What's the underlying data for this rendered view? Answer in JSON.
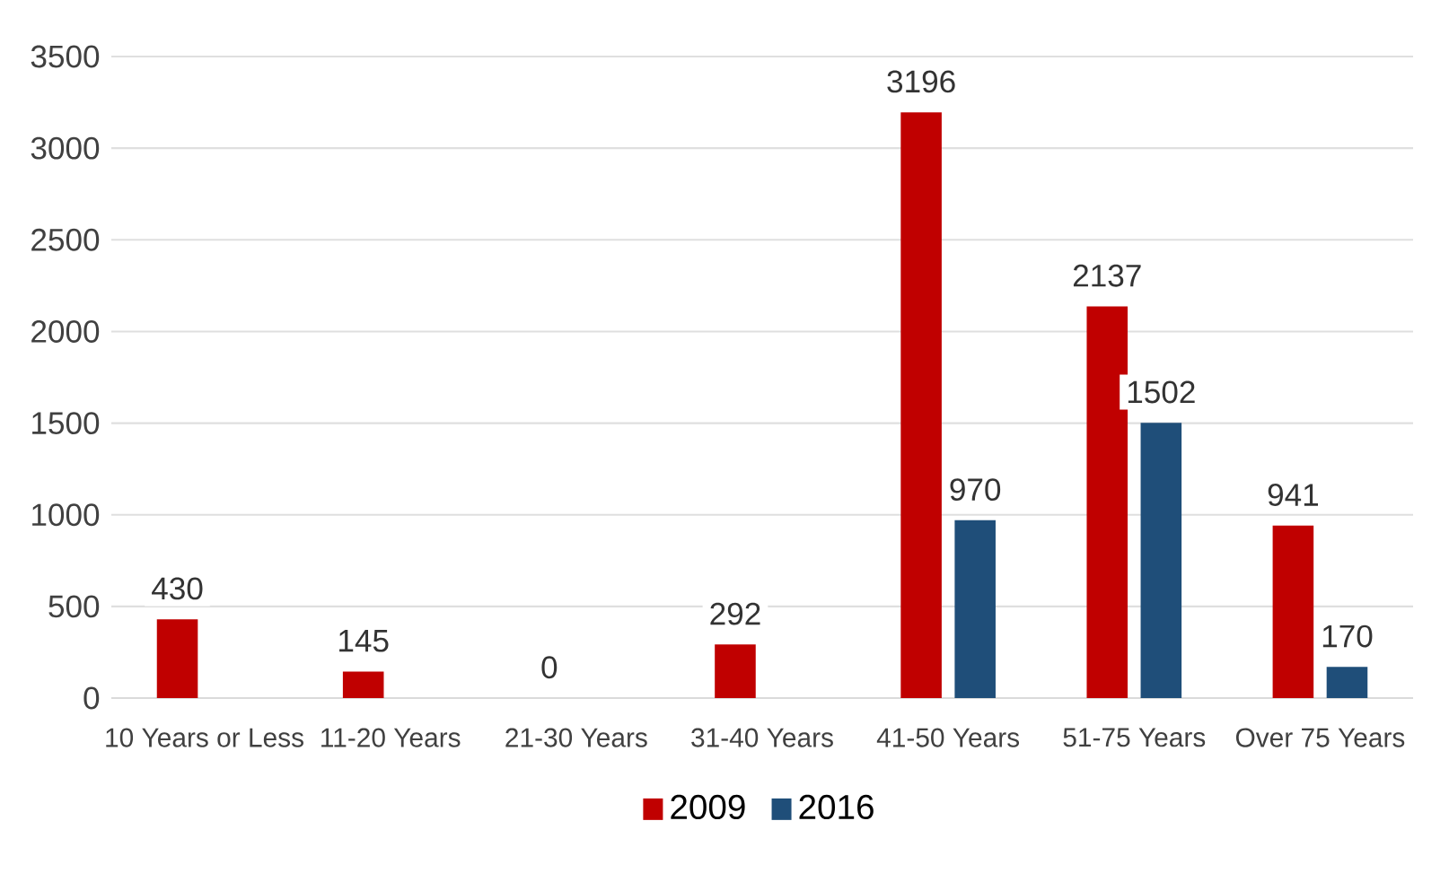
{
  "chart_data": {
    "type": "bar",
    "categories": [
      "10 Years or Less",
      "11-20 Years",
      "21-30 Years",
      "31-40 Years",
      "41-50 Years",
      "51-75 Years",
      "Over 75 Years"
    ],
    "series": [
      {
        "name": "2009",
        "color": "#c00000",
        "values": [
          430,
          145,
          0,
          292,
          3196,
          2137,
          941
        ]
      },
      {
        "name": "2016",
        "color": "#1f4e79",
        "values": [
          null,
          null,
          null,
          null,
          970,
          1502,
          170
        ]
      }
    ],
    "ylim": [
      0,
      3500
    ],
    "yticks": [
      0,
      500,
      1000,
      1500,
      2000,
      2500,
      3000,
      3500
    ],
    "grid": "y",
    "legend": "bottom",
    "data_labels": true
  }
}
